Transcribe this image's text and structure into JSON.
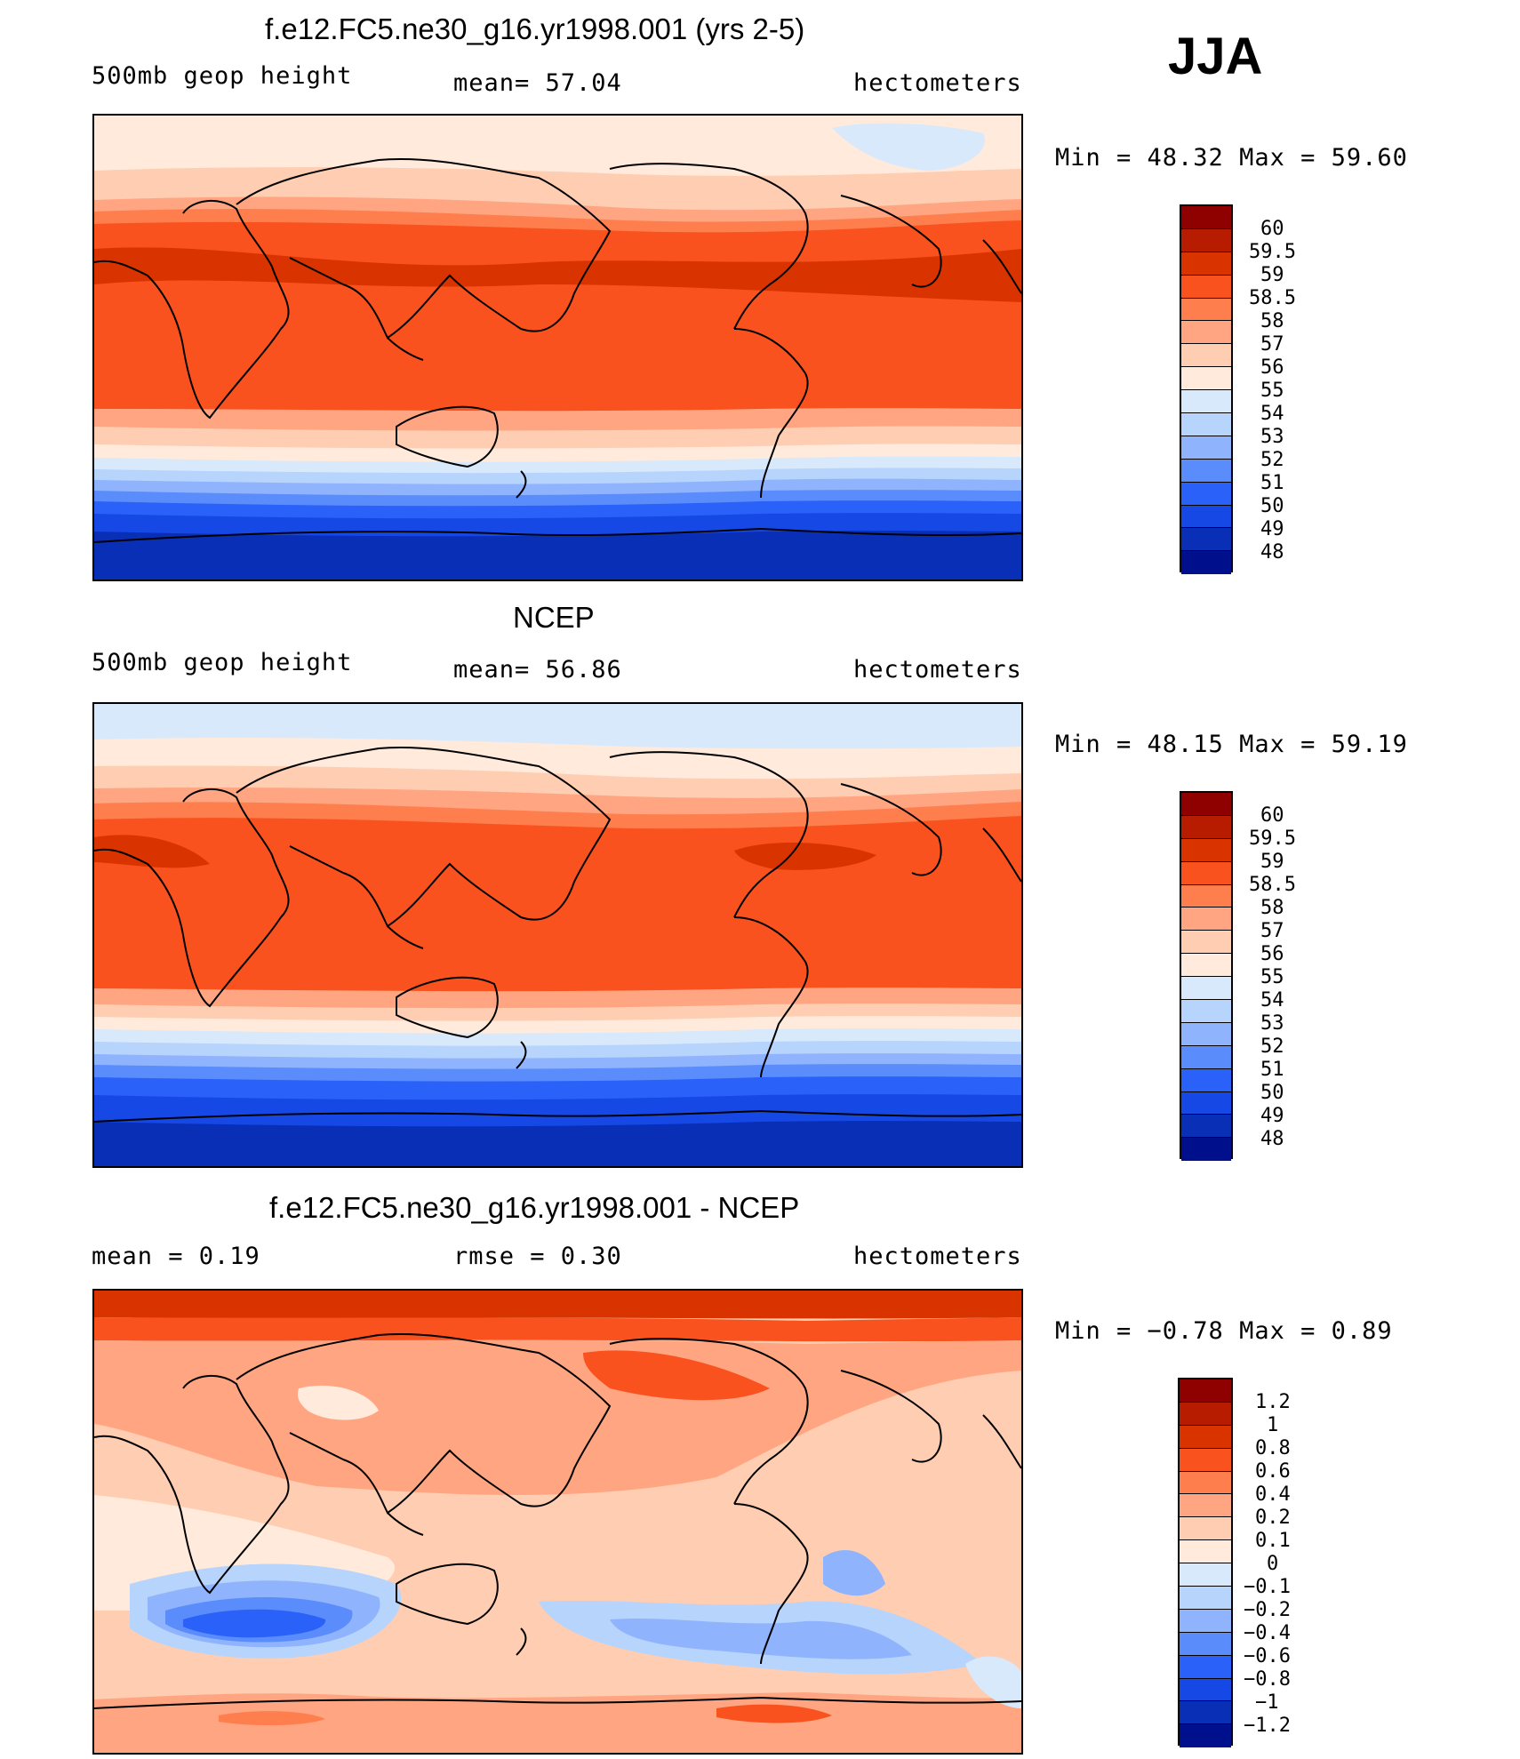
{
  "season": "JJA",
  "colors": {
    "abs_scale": [
      "#8f0000",
      "#b81c00",
      "#d93400",
      "#f9521f",
      "#ff7e4e",
      "#ffa582",
      "#ffcdb1",
      "#ffeadc",
      "#d8e9fb",
      "#b7d4fd",
      "#8fb4fd",
      "#5b8cfc",
      "#2a61f9",
      "#1648e5",
      "#0a2fb7",
      "#00108c"
    ],
    "diff_scale": [
      "#8f0000",
      "#b81c00",
      "#d93400",
      "#f9521f",
      "#ff7e4e",
      "#ffa582",
      "#ffcdb1",
      "#ffeadc",
      "#d8e9fb",
      "#b7d4fd",
      "#8fb4fd",
      "#5b8cfc",
      "#2a61f9",
      "#1648e5",
      "#0a2fb7",
      "#00108c"
    ]
  },
  "panels": [
    {
      "title": "f.e12.FC5.ne30_g16.yr1998.001 (yrs 2-5)",
      "left_label": "500mb  geop  height",
      "center_label": "mean=   57.04",
      "right_label": "hectometers",
      "minmax": "Min  =    48.32  Max  =    59.60",
      "colorbar_labels": [
        "60",
        "59.5",
        "59",
        "58.5",
        "58",
        "57",
        "56",
        "55",
        "54",
        "53",
        "52",
        "51",
        "50",
        "49",
        "48"
      ]
    },
    {
      "title": "NCEP",
      "left_label": "500mb  geop  height",
      "center_label": "mean=   56.86",
      "right_label": "hectometers",
      "minmax": "Min  =    48.15  Max  =    59.19",
      "colorbar_labels": [
        "60",
        "59.5",
        "59",
        "58.5",
        "58",
        "57",
        "56",
        "55",
        "54",
        "53",
        "52",
        "51",
        "50",
        "49",
        "48"
      ]
    },
    {
      "title": "f.e12.FC5.ne30_g16.yr1998.001 - NCEP",
      "left_label": "mean  =     0.19",
      "center_label": "rmse  =     0.30",
      "right_label": "hectometers",
      "minmax": "Min  =   −0.78  Max  =     0.89",
      "colorbar_labels": [
        "1.2",
        "1",
        "0.8",
        "0.6",
        "0.4",
        "0.2",
        "0.1",
        "0",
        "−0.1",
        "−0.2",
        "−0.4",
        "−0.6",
        "−0.8",
        "−1",
        "−1.2"
      ]
    }
  ]
}
